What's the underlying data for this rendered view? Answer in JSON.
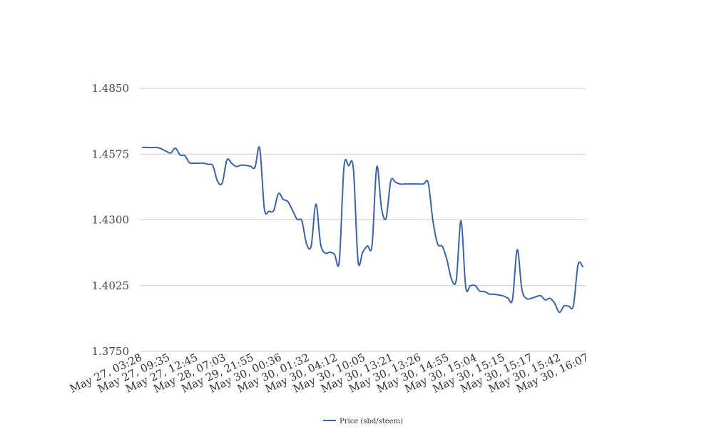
{
  "chart_data": {
    "type": "line",
    "title": "",
    "xlabel": "",
    "ylabel": "",
    "ylim": [
      1.375,
      1.485
    ],
    "yticks": [
      "1.3750",
      "1.4025",
      "1.4300",
      "1.4575",
      "1.4850"
    ],
    "xtick_labels": [
      "May 27, 03:28",
      "May 27, 09:35",
      "May 27, 12:45",
      "May 28, 07:03",
      "May 29, 21:55",
      "May 30, 00:36",
      "May 30, 01:32",
      "May 30, 04:12",
      "May 30, 10:05",
      "May 30, 13:21",
      "May 30, 13:26",
      "May 30, 14:55",
      "May 30, 15:04",
      "May 30, 15:15",
      "May 30, 15:17",
      "May 30, 15:42",
      "May 30, 16:07"
    ],
    "grid": true,
    "legend_position": "bottom",
    "line_color": "#3b63a8",
    "series": [
      {
        "name": "Price (sbd/steem)",
        "values": [
          1.4603,
          1.4603,
          1.4602,
          1.4603,
          1.4597,
          1.4587,
          1.458,
          1.46,
          1.4571,
          1.4569,
          1.4539,
          1.4537,
          1.4537,
          1.4537,
          1.4532,
          1.4526,
          1.4461,
          1.4455,
          1.4551,
          1.4537,
          1.4523,
          1.4529,
          1.4528,
          1.4524,
          1.452,
          1.46,
          1.4346,
          1.4336,
          1.434,
          1.441,
          1.4386,
          1.4377,
          1.434,
          1.4302,
          1.4296,
          1.42,
          1.4192,
          1.4366,
          1.42,
          1.4161,
          1.4165,
          1.4155,
          1.4128,
          1.4521,
          1.4526,
          1.4515,
          1.413,
          1.4165,
          1.4191,
          1.4195,
          1.4522,
          1.435,
          1.4308,
          1.4463,
          1.4457,
          1.445,
          1.445,
          1.445,
          1.445,
          1.445,
          1.445,
          1.4454,
          1.4296,
          1.4199,
          1.4189,
          1.4132,
          1.405,
          1.4052,
          1.4296,
          1.4019,
          1.4025,
          1.4025,
          1.4002,
          1.4,
          1.399,
          1.3989,
          1.3986,
          1.3982,
          1.3973,
          1.3968,
          1.4175,
          1.4009,
          1.3971,
          1.3972,
          1.3978,
          1.3983,
          1.3965,
          1.3972,
          1.3951,
          1.3913,
          1.394,
          1.3939,
          1.3941,
          1.4113,
          1.4104
        ]
      }
    ]
  }
}
